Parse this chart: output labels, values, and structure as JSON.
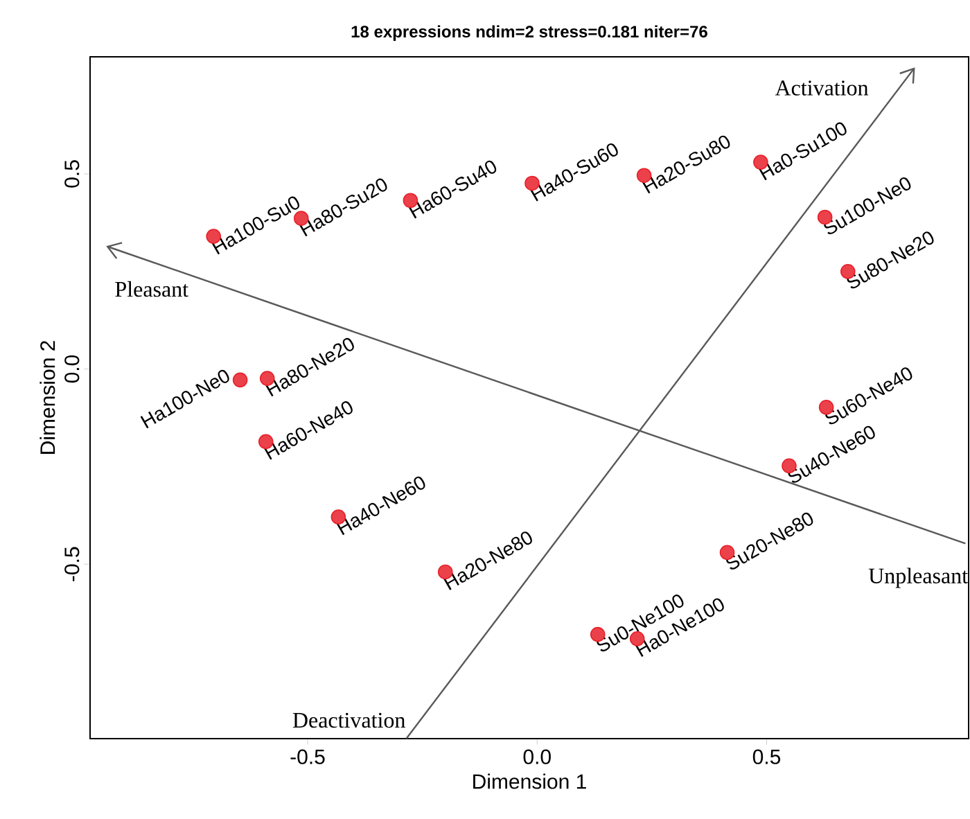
{
  "chart_data": {
    "type": "scatter",
    "title": "18 expressions ndim=2 stress=0.181 niter=76",
    "xlabel": "Dimension 1",
    "ylabel": "Dimension 2",
    "xlim": [
      -0.974,
      0.94
    ],
    "ylim": [
      -0.947,
      0.8
    ],
    "xticks": [
      -0.5,
      {
        "value": 0,
        "label": "0.0"
      },
      0.5
    ],
    "yticks": [
      -0.5,
      {
        "value": 0,
        "label": "0.0"
      },
      0.5
    ],
    "marker": "circle",
    "annotations": [
      "Activation",
      "Pleasant",
      "Unpleasant",
      "Deactivation"
    ],
    "series": [
      {
        "color": "#e8202a",
        "x": [
          -0.705,
          -0.514,
          -0.276,
          -0.011,
          0.233,
          0.487,
          0.627,
          0.677,
          -0.647,
          -0.588,
          -0.591,
          -0.433,
          -0.2,
          0.63,
          0.549,
          0.414,
          0.132,
          0.218
        ],
        "values": [
          0.34,
          0.386,
          0.432,
          0.476,
          0.496,
          0.53,
          0.389,
          0.25,
          -0.028,
          -0.024,
          -0.186,
          -0.379,
          -0.52,
          -0.098,
          -0.248,
          -0.47,
          -0.68,
          -0.691
        ],
        "value_labels": [
          "Ha100-Su0",
          "Ha80-Su20",
          "Ha60-Su40",
          "Ha40-Su60",
          "Ha20-Su80",
          "Ha0-Su100",
          "Su100-Ne0",
          "Su80-Ne20",
          "Ha100-Ne0",
          "Ha80-Ne20",
          "Ha60-Ne40",
          "Ha40-Ne60",
          "Ha20-Ne80",
          "Su60-Ne40",
          "Su40-Ne60",
          "Su20-Ne80",
          "Su0-Ne100",
          "Ha0-Ne100"
        ]
      }
    ]
  }
}
